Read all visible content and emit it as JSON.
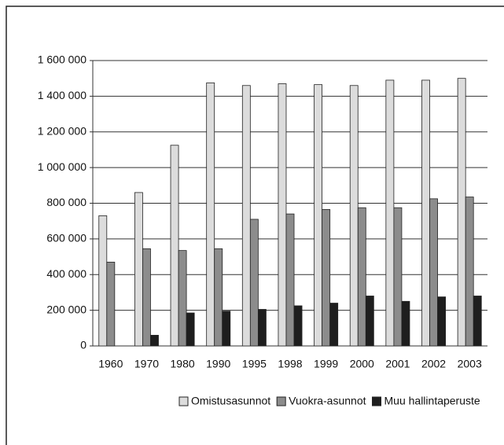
{
  "chart_data": {
    "type": "bar",
    "categories": [
      "1960",
      "1970",
      "1980",
      "1990",
      "1995",
      "1998",
      "1999",
      "2000",
      "2001",
      "2002",
      "2003"
    ],
    "series": [
      {
        "name": "Omistusasunnot",
        "color": "#dcdcdc",
        "values": [
          730000,
          860000,
          1125000,
          1475000,
          1460000,
          1470000,
          1465000,
          1460000,
          1490000,
          1490000,
          1500000
        ]
      },
      {
        "name": "Vuokra-asunnot",
        "color": "#8c8c8c",
        "values": [
          470000,
          545000,
          535000,
          545000,
          710000,
          740000,
          765000,
          775000,
          775000,
          825000,
          835000
        ]
      },
      {
        "name": "Muu hallintaperuste",
        "color": "#1e1e1e",
        "values": [
          0,
          60000,
          185000,
          195000,
          205000,
          225000,
          240000,
          280000,
          250000,
          275000,
          280000
        ]
      }
    ],
    "ylim": [
      0,
      1600000
    ],
    "yticks": [
      0,
      {
        "value": 200000,
        "label": "200 000"
      },
      {
        "value": 400000,
        "label": "400 000"
      },
      {
        "value": 600000,
        "label": "600 000"
      },
      {
        "value": 800000,
        "label": "800 000"
      },
      {
        "value": 1000000,
        "label": "1 000 000"
      },
      {
        "value": 1200000,
        "label": "1 200 000"
      },
      {
        "value": 1400000,
        "label": "1 400 000"
      },
      {
        "value": 1600000,
        "label": "1 600 000"
      }
    ],
    "grid": true,
    "legend": "bottom"
  }
}
